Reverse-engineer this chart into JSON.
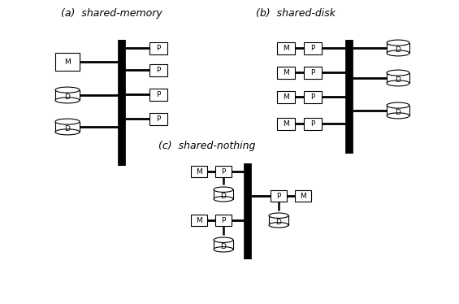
{
  "title_a": "(a)  shared-memory",
  "title_b": "(b)  shared-disk",
  "title_c": "(c)  shared-nothing",
  "bg_color": "#ffffff",
  "box_color": "#ffffff",
  "box_edge": "#000000",
  "bus_color": "#000000",
  "font_size_label": 6.5,
  "font_size_title": 9
}
